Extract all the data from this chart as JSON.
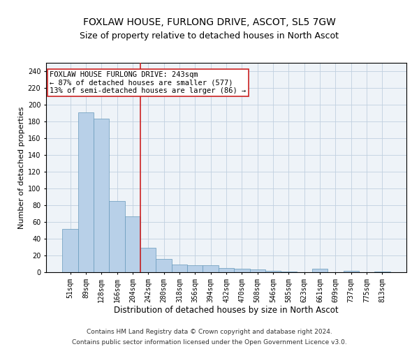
{
  "title": "FOXLAW HOUSE, FURLONG DRIVE, ASCOT, SL5 7GW",
  "subtitle": "Size of property relative to detached houses in North Ascot",
  "xlabel": "Distribution of detached houses by size in North Ascot",
  "ylabel": "Number of detached properties",
  "categories": [
    "51sqm",
    "89sqm",
    "128sqm",
    "166sqm",
    "204sqm",
    "242sqm",
    "280sqm",
    "318sqm",
    "356sqm",
    "394sqm",
    "432sqm",
    "470sqm",
    "508sqm",
    "546sqm",
    "585sqm",
    "623sqm",
    "661sqm",
    "699sqm",
    "737sqm",
    "775sqm",
    "813sqm"
  ],
  "values": [
    52,
    191,
    183,
    85,
    67,
    29,
    16,
    9,
    8,
    8,
    5,
    4,
    3,
    2,
    1,
    0,
    4,
    0,
    2,
    0,
    1
  ],
  "bar_color": "#b8d0e8",
  "bar_edge_color": "#6699bb",
  "bar_edge_width": 0.5,
  "vline_x_index": 5,
  "vline_color": "#cc2222",
  "annotation_line1": "FOXLAW HOUSE FURLONG DRIVE: 243sqm",
  "annotation_line2": "← 87% of detached houses are smaller (577)",
  "annotation_line3": "13% of semi-detached houses are larger (86) →",
  "annotation_box_color": "#cc2222",
  "annotation_fontsize": 7.5,
  "ylim": [
    0,
    250
  ],
  "yticks": [
    0,
    20,
    40,
    60,
    80,
    100,
    120,
    140,
    160,
    180,
    200,
    220,
    240
  ],
  "title_fontsize": 10,
  "subtitle_fontsize": 9,
  "xlabel_fontsize": 8.5,
  "ylabel_fontsize": 8,
  "tick_fontsize": 7,
  "footer_line1": "Contains HM Land Registry data © Crown copyright and database right 2024.",
  "footer_line2": "Contains public sector information licensed under the Open Government Licence v3.0.",
  "bg_color": "#eef3f8",
  "grid_color": "#c0d0e0",
  "fig_bg_color": "#ffffff"
}
